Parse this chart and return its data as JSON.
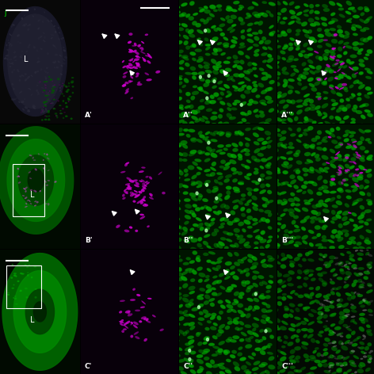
{
  "figure_size": [
    4.74,
    4.74
  ],
  "dpi": 100,
  "background_color": "#000000",
  "panel_configs": [
    {
      "row": 0,
      "col": 0,
      "type": "overview",
      "label": null,
      "has_L": true,
      "has_scalebar": true,
      "has_j_label": true,
      "has_box": false,
      "color_theme": "dark_mixed"
    },
    {
      "row": 0,
      "col": 1,
      "type": "channel",
      "label": "A'",
      "color_theme": "magenta",
      "has_scalebar": true,
      "arrows": [
        [
          0.55,
          0.38,
          -0.12,
          0.12
        ],
        [
          0.25,
          0.7,
          -0.1,
          0.07
        ],
        [
          0.38,
          0.7,
          -0.1,
          0.07
        ]
      ]
    },
    {
      "row": 0,
      "col": 2,
      "type": "channel",
      "label": "A''",
      "color_theme": "green",
      "has_scalebar": false,
      "arrows": [
        [
          0.5,
          0.38,
          -0.12,
          0.12
        ],
        [
          0.22,
          0.65,
          -0.1,
          0.07
        ],
        [
          0.35,
          0.65,
          -0.1,
          0.07
        ]
      ]
    },
    {
      "row": 0,
      "col": 3,
      "type": "channel",
      "label": "A'''",
      "color_theme": "green_magenta",
      "has_scalebar": false,
      "arrows": [
        [
          0.5,
          0.38,
          -0.12,
          0.12
        ],
        [
          0.22,
          0.65,
          -0.1,
          0.07
        ],
        [
          0.35,
          0.65,
          -0.1,
          0.07
        ]
      ]
    },
    {
      "row": 1,
      "col": 0,
      "type": "overview",
      "label": null,
      "has_L": true,
      "has_scalebar": true,
      "has_j_label": false,
      "has_box": true,
      "color_theme": "green_overview"
    },
    {
      "row": 1,
      "col": 1,
      "type": "channel",
      "label": "B'",
      "color_theme": "magenta",
      "has_scalebar": false,
      "arrows": [
        [
          0.6,
          0.28,
          -0.12,
          0.1
        ],
        [
          0.35,
          0.28,
          -0.1,
          0.07
        ]
      ]
    },
    {
      "row": 1,
      "col": 2,
      "type": "channel",
      "label": "B''",
      "color_theme": "green",
      "has_scalebar": false,
      "arrows": [
        [
          0.52,
          0.25,
          -0.12,
          0.1
        ],
        [
          0.3,
          0.25,
          -0.1,
          0.07
        ]
      ]
    },
    {
      "row": 1,
      "col": 3,
      "type": "channel",
      "label": "B'''",
      "color_theme": "green_magenta2",
      "has_scalebar": false,
      "arrows": [
        [
          0.52,
          0.22,
          -0.12,
          0.1
        ]
      ]
    },
    {
      "row": 2,
      "col": 0,
      "type": "overview",
      "label": null,
      "has_L": true,
      "has_scalebar": true,
      "has_j_label": false,
      "has_box": true,
      "color_theme": "green_overview2"
    },
    {
      "row": 2,
      "col": 1,
      "type": "channel",
      "label": "C'",
      "color_theme": "magenta_sparse",
      "has_scalebar": false,
      "arrows": [
        [
          0.55,
          0.8,
          -0.12,
          0.1
        ]
      ]
    },
    {
      "row": 2,
      "col": 2,
      "type": "channel",
      "label": "C''",
      "color_theme": "green",
      "has_scalebar": false,
      "arrows": [
        [
          0.5,
          0.8,
          -0.12,
          0.1
        ]
      ]
    },
    {
      "row": 2,
      "col": 3,
      "type": "channel",
      "label": "C'''",
      "color_theme": "green_gray",
      "has_scalebar": false,
      "arrows": []
    }
  ]
}
